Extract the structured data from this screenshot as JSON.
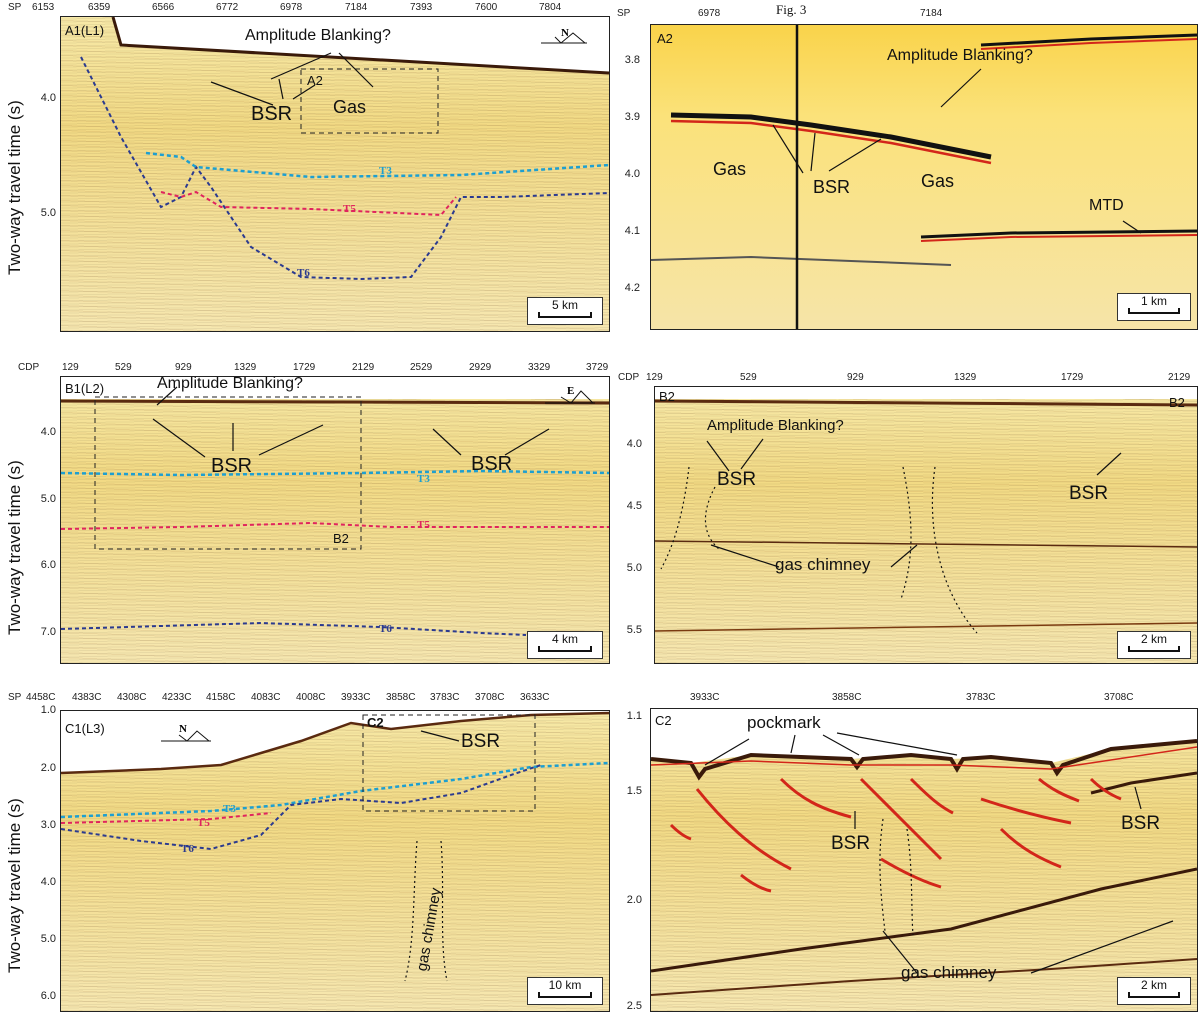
{
  "ylabel": "Two-way travel time (s)",
  "panelA1": {
    "label": "A1(L1)",
    "axis_prefix": "SP",
    "xticks": [
      "6153",
      "6359",
      "6566",
      "6772",
      "6978",
      "7184",
      "7393",
      "7600",
      "7804"
    ],
    "yticks": [
      "4.0",
      "5.0"
    ],
    "annotations": {
      "amp": "Amplitude Blanking?",
      "bsr": "BSR",
      "gas": "Gas",
      "box": "A2"
    },
    "direction": "N",
    "horizons": {
      "t3": "T3",
      "t5": "T5",
      "t6": "T6"
    },
    "scale": "5 km"
  },
  "panelA2": {
    "label": "A2",
    "axis_prefix": "SP",
    "xticks": [
      "6978",
      "7184"
    ],
    "fig_ref": "Fig. 3",
    "yticks": [
      "3.8",
      "3.9",
      "4.0",
      "4.1",
      "4.2"
    ],
    "annotations": {
      "amp": "Amplitude Blanking?",
      "gas1": "Gas",
      "bsr": "BSR",
      "gas2": "Gas",
      "mtd": "MTD"
    },
    "scale": "1 km"
  },
  "panelB1": {
    "label": "B1(L2)",
    "axis_prefix": "CDP",
    "xticks": [
      "129",
      "529",
      "929",
      "1329",
      "1729",
      "2129",
      "2529",
      "2929",
      "3329",
      "3729"
    ],
    "yticks": [
      "4.0",
      "5.0",
      "6.0",
      "7.0"
    ],
    "annotations": {
      "amp": "Amplitude Blanking?",
      "bsr1": "BSR",
      "bsr2": "BSR",
      "box": "B2"
    },
    "direction": "E",
    "horizons": {
      "t3": "T3",
      "t5": "T5",
      "t6": "T6"
    },
    "scale": "4 km"
  },
  "panelB2": {
    "label": "B2",
    "corner_label": "B2",
    "axis_prefix": "CDP",
    "xticks": [
      "129",
      "529",
      "929",
      "1329",
      "1729",
      "2129"
    ],
    "yticks": [
      "4.0",
      "4.5",
      "5.0",
      "5.5"
    ],
    "annotations": {
      "amp": "Amplitude Blanking?",
      "bsr1": "BSR",
      "bsr2": "BSR",
      "chimney": "gas chimney"
    },
    "scale": "2 km"
  },
  "panelC1": {
    "label": "C1(L3)",
    "axis_prefix": "SP",
    "xticks": [
      "4458C",
      "4383C",
      "4308C",
      "4233C",
      "4158C",
      "4083C",
      "4008C",
      "3933C",
      "3858C",
      "3783C",
      "3708C",
      "3633C"
    ],
    "yticks": [
      "1.0",
      "2.0",
      "3.0",
      "4.0",
      "5.0",
      "6.0"
    ],
    "annotations": {
      "bsr": "BSR",
      "chimney": "gas chimney",
      "box": "C2"
    },
    "direction": "N",
    "horizons": {
      "t3": "T3",
      "t5": "T5",
      "t6": "T6"
    },
    "scale": "10 km"
  },
  "panelC2": {
    "label": "C2",
    "xticks": [
      "3933C",
      "3858C",
      "3783C",
      "3708C"
    ],
    "yticks": [
      "1.1",
      "1.5",
      "2.0",
      "2.5"
    ],
    "annotations": {
      "pockmark": "pockmark",
      "bsr1": "BSR",
      "bsr2": "BSR",
      "chimney": "gas chimney"
    },
    "scale": "2 km"
  },
  "colors": {
    "t3": "#1e9fd0",
    "t5": "#e0245e",
    "t6": "#2b3a8f"
  }
}
